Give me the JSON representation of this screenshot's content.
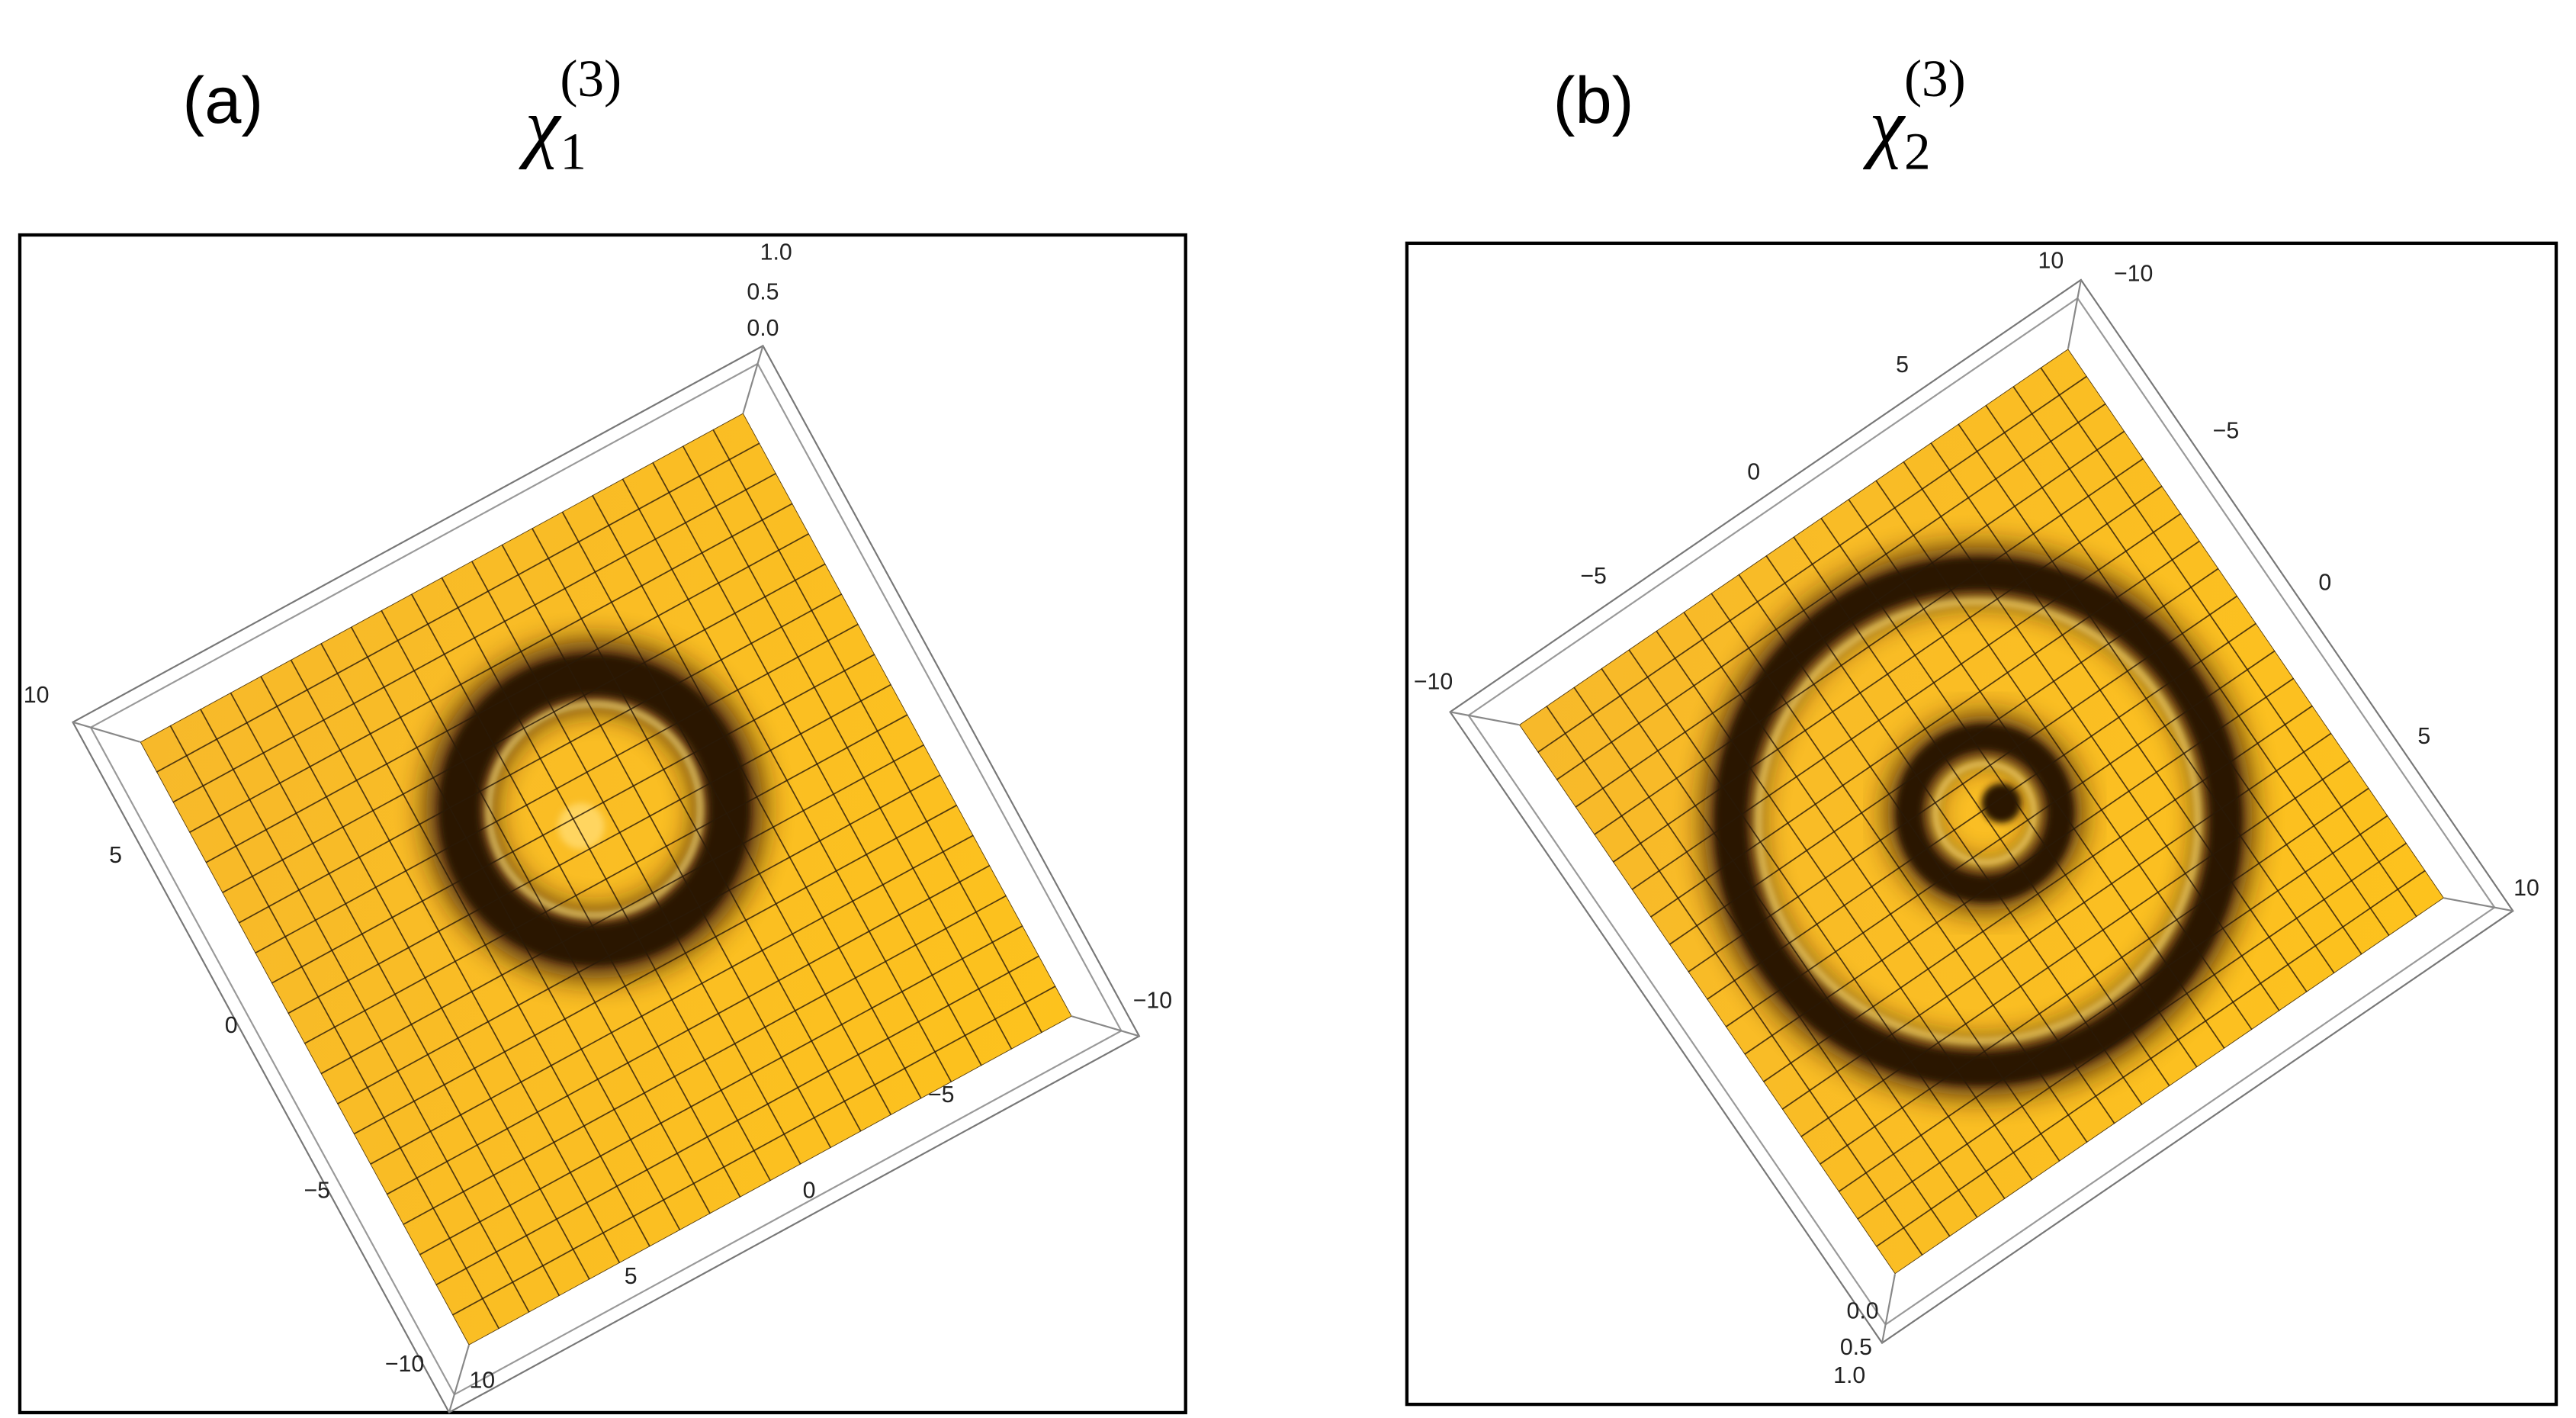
{
  "panels": [
    {
      "label": "(a)",
      "symbol": "χ",
      "subscript": "1",
      "superscript": "(3)",
      "z_ticks": [
        "1.0",
        "0.5",
        "0.0"
      ],
      "axis_left": [
        "10",
        "5",
        "0",
        "−5",
        "−10"
      ],
      "axis_bottom": [
        "10",
        "5",
        "0",
        "−5",
        "−10"
      ]
    },
    {
      "label": "(b)",
      "symbol": "χ",
      "subscript": "2",
      "superscript": "(3)",
      "z_ticks": [
        "0.0",
        "0.5",
        "1.0"
      ],
      "axis_top": [
        "10",
        "5",
        "0",
        "−5",
        "−10"
      ],
      "axis_right": [
        "−10",
        "−5",
        "0",
        "5",
        "10"
      ]
    }
  ]
}
